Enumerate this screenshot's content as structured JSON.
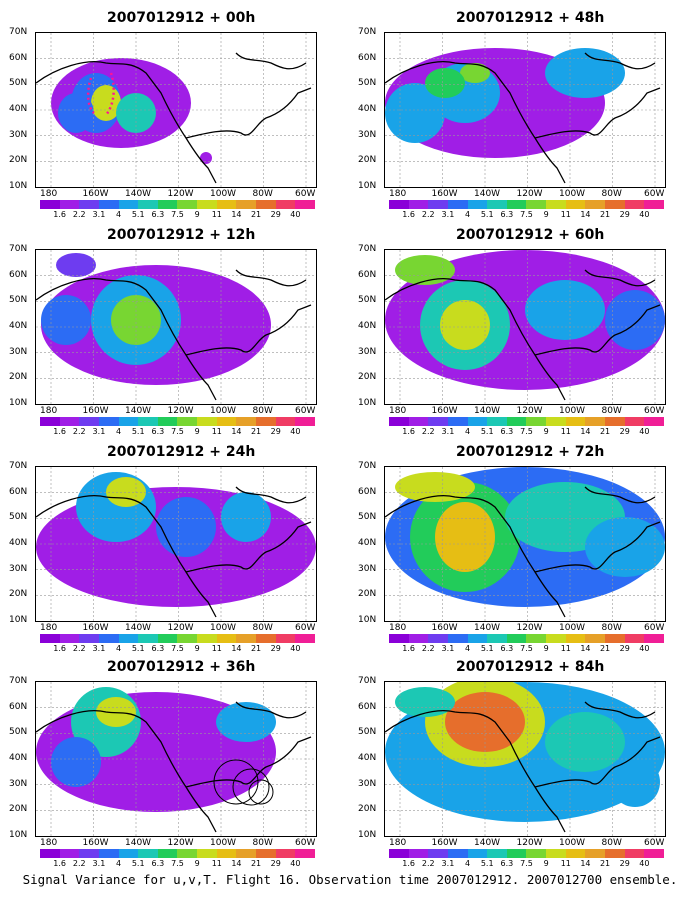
{
  "colorbar": {
    "labels": [
      "1.6",
      "2.2",
      "3.1",
      "4",
      "5.1",
      "6.3",
      "7.5",
      "9",
      "11",
      "14",
      "21",
      "29",
      "40"
    ],
    "colors": [
      "#8a00d8",
      "#a01ee6",
      "#6e3cf0",
      "#2c6cf4",
      "#19a3e8",
      "#1cc8b4",
      "#22cc5a",
      "#78d632",
      "#c8dc1e",
      "#e6be14",
      "#e6a028",
      "#e66e2c",
      "#f03c64",
      "#f01e96"
    ]
  },
  "axes": {
    "lat_ticks": [
      "10N",
      "20N",
      "30N",
      "40N",
      "50N",
      "60N",
      "70N"
    ],
    "lon_ticks": [
      "180",
      "160W",
      "140W",
      "120W",
      "100W",
      "80W",
      "60W"
    ]
  },
  "panels": [
    {
      "title": "2007012912 + 00h"
    },
    {
      "title": "2007012912 + 48h"
    },
    {
      "title": "2007012912 + 12h"
    },
    {
      "title": "2007012912 + 60h"
    },
    {
      "title": "2007012912 + 24h"
    },
    {
      "title": "2007012912 + 72h"
    },
    {
      "title": "2007012912 + 36h"
    },
    {
      "title": "2007012912 + 84h"
    }
  ],
  "caption": "Signal Variance for u,v,T. Flight 16. Observation time 2007012912. 2007012700 ensemble."
}
